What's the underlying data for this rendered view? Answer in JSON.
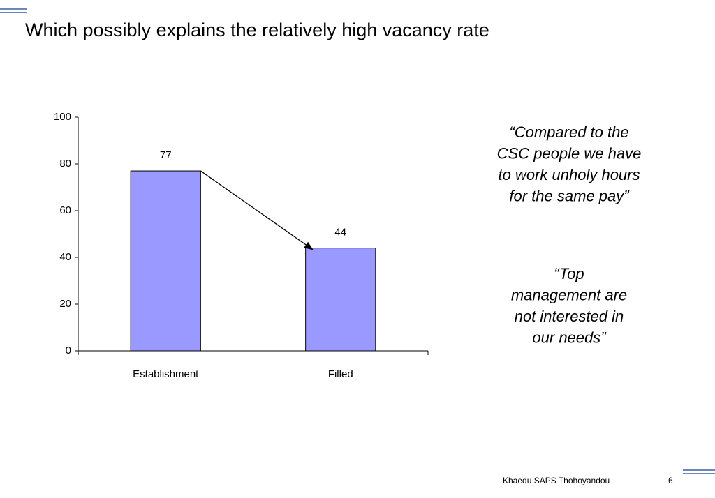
{
  "chart_data": {
    "type": "bar",
    "title": "Which possibly explains the relatively high vacancy rate",
    "categories": [
      "Establishment",
      "Filled"
    ],
    "values": [
      77,
      44
    ],
    "color": "#9999ff",
    "ylim": [
      0,
      100
    ],
    "yticks": [
      0,
      20,
      40,
      60,
      80,
      100
    ],
    "grid": false,
    "annotations": [
      [
        "“Compared to the",
        "CSC people we have",
        "to work unholy hours",
        "for the same pay”"
      ],
      [
        "“Top",
        "management are",
        "not interested in",
        "our needs”"
      ]
    ]
  },
  "footer": {
    "text": "Khaedu SAPS Thohoyandou",
    "page": "6"
  }
}
